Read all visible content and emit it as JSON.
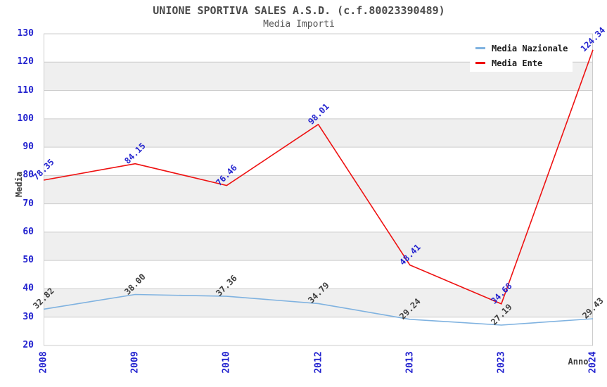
{
  "header": {
    "title": "UNIONE SPORTIVA SALES A.S.D. (c.f.80023390489)",
    "subtitle": "Media Importi"
  },
  "chart_data": {
    "type": "line",
    "title": "UNIONE SPORTIVA SALES A.S.D. (c.f.80023390489)",
    "subtitle": "Media Importi",
    "xlabel": "Anno",
    "ylabel": "Media",
    "categories": [
      "2008",
      "2009",
      "2010",
      "2012",
      "2013",
      "2023",
      "2024"
    ],
    "series": [
      {
        "name": "Media Nazionale",
        "color": "#7fb2e0",
        "label_color": "#3d3d3d",
        "values": [
          32.82,
          38.0,
          37.36,
          34.79,
          29.24,
          27.19,
          29.43
        ],
        "labels": [
          "32.82",
          "38.00",
          "37.36",
          "34.79",
          "29.24",
          "27.19",
          "29.43"
        ]
      },
      {
        "name": "Media Ente",
        "color": "#ee1111",
        "label_color": "#2323cf",
        "values": [
          78.35,
          84.15,
          76.46,
          98.01,
          48.41,
          34.68,
          124.34
        ],
        "labels": [
          "78.35",
          "84.15",
          "76.46",
          "98.01",
          "48.41",
          "34.68",
          "124.34"
        ]
      }
    ],
    "ylim": [
      20,
      130
    ],
    "yticks": [
      20,
      30,
      40,
      50,
      60,
      70,
      80,
      90,
      100,
      110,
      120,
      130
    ],
    "grid": true,
    "band_fill_on": true,
    "legend_position": "top-right",
    "colors": {
      "tick_label": "#2323cf",
      "grid_line": "#cccccc",
      "band_fill": "#efefef",
      "title_text": "#4a4a4a",
      "axis_title_text": "#3d3d3d"
    }
  }
}
